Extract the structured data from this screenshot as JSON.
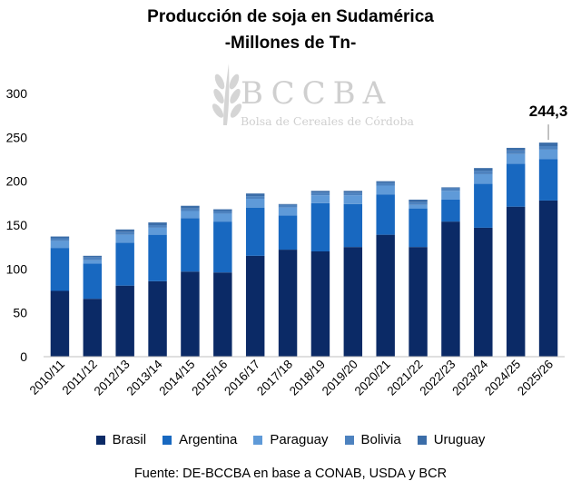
{
  "title": "Producción de soja en Sudamérica",
  "subtitle": "-Millones de Tn-",
  "source": "Fuente: DE-BCCBA en base a CONAB, USDA y BCR",
  "watermark": {
    "name": "BCCBA",
    "tagline": "Bolsa de Cereales de Córdoba"
  },
  "chart_data": {
    "type": "bar",
    "stacked": true,
    "categories": [
      "2010/11",
      "2011/12",
      "2012/13",
      "2013/14",
      "2014/15",
      "2015/16",
      "2016/17",
      "2017/18",
      "2018/19",
      "2019/20",
      "2020/21",
      "2021/22",
      "2022/23",
      "2023/24",
      "2024/25",
      "2025/26"
    ],
    "yticks": [
      0,
      50,
      100,
      150,
      200,
      250,
      300
    ],
    "ylim": [
      0,
      300
    ],
    "grid": false,
    "legend_position": "bottom",
    "series": [
      {
        "name": "Brasil",
        "color": "#0b2a66",
        "values": [
          75,
          66,
          81,
          86,
          97,
          96,
          115,
          122,
          120,
          125,
          139,
          125,
          154,
          147,
          171,
          178
        ]
      },
      {
        "name": "Argentina",
        "color": "#1868c0",
        "values": [
          49,
          40,
          49,
          53,
          61,
          58,
          55,
          39,
          55,
          49,
          46,
          44,
          25,
          50,
          49,
          47
        ]
      },
      {
        "name": "Paraguay",
        "color": "#5f9ad8",
        "values": [
          8,
          4,
          9,
          8,
          8,
          9,
          10,
          9,
          9,
          10,
          10,
          4,
          10,
          11,
          11,
          11
        ]
      },
      {
        "name": "Bolivia",
        "color": "#4d82bf",
        "values": [
          3,
          3,
          3,
          3,
          3,
          3,
          3,
          3,
          3,
          3,
          3,
          3,
          3,
          4,
          4,
          4
        ]
      },
      {
        "name": "Uruguay",
        "color": "#3b6da8",
        "values": [
          2,
          2,
          3,
          3,
          3,
          2,
          3,
          1,
          2,
          2,
          2,
          3,
          1,
          3,
          3,
          4
        ]
      }
    ],
    "annotation": {
      "category": "2025/26",
      "label": "244,3"
    }
  }
}
